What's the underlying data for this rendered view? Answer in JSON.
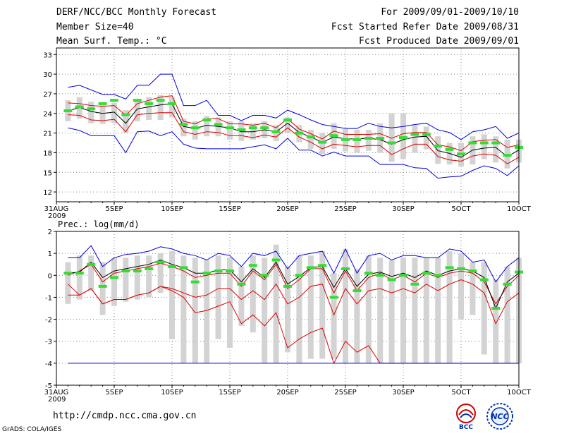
{
  "header": {
    "left": [
      "DERF/NCC/BCC Monthly Forecast",
      "Member Size=40",
      "Mean Surf. Temp.: °C"
    ],
    "right": [
      "For 2009/09/01-2009/10/10",
      "Fcst Started Refer Date 2009/08/31",
      "Fcst Produced Date 2009/09/01"
    ]
  },
  "footer": {
    "url": "http://cmdp.ncc.cma.gov.cn",
    "credit": "GrADS: COLA/IGES"
  },
  "logos": [
    {
      "name": "bcc-logo",
      "text": "BCC"
    },
    {
      "name": "ncc-logo",
      "text": "NCC"
    }
  ],
  "colors": {
    "max_min": "#0000dd",
    "spread": "#dd0000",
    "mean": "#000000",
    "median": "#33dd33",
    "box": "#d3d3d3",
    "grid": "#888888"
  },
  "chart_data": [
    {
      "type": "line",
      "title": "Mean Surf. Temp.: °C",
      "ylim": [
        10.5,
        34
      ],
      "yticks": [
        12,
        15,
        18,
        21,
        24,
        27,
        30,
        33
      ],
      "xticks": [
        {
          "day": 0,
          "label": "31AUG",
          "sub": "2009"
        },
        {
          "day": 5,
          "label": "5SEP"
        },
        {
          "day": 10,
          "label": "10SEP"
        },
        {
          "day": 15,
          "label": "15SEP"
        },
        {
          "day": 20,
          "label": "20SEP"
        },
        {
          "day": 25,
          "label": "25SEP"
        },
        {
          "day": 30,
          "label": "30SEP"
        },
        {
          "day": 35,
          "label": "5OCT"
        },
        {
          "day": 40,
          "label": "10OCT"
        }
      ],
      "x": [
        1,
        2,
        3,
        4,
        5,
        6,
        7,
        8,
        9,
        10,
        11,
        12,
        13,
        14,
        15,
        16,
        17,
        18,
        19,
        20,
        21,
        22,
        23,
        24,
        25,
        26,
        27,
        28,
        29,
        30,
        31,
        32,
        33,
        34,
        35,
        36,
        37,
        38,
        39,
        40
      ],
      "series": [
        {
          "name": "max",
          "values": [
            28,
            28.3,
            27.6,
            26.9,
            26.9,
            26.2,
            28.3,
            28.3,
            30,
            30,
            25.2,
            25.2,
            26,
            23.7,
            23.7,
            22.9,
            23.7,
            23.7,
            23.3,
            24.5,
            23.8,
            23,
            22.3,
            22,
            21.7,
            21.7,
            22.5,
            22,
            21.8,
            22,
            22.3,
            22.5,
            21.5,
            21.1,
            20,
            21.2,
            21.5,
            22,
            20.2,
            21
          ],
          "color": "#0000dd"
        },
        {
          "name": "upper",
          "values": [
            25.6,
            25.5,
            25.2,
            25.1,
            25.2,
            23.7,
            25.5,
            26,
            26.5,
            26.7,
            22.8,
            22.4,
            23.2,
            23.2,
            22.4,
            22.4,
            22.2,
            22.5,
            21.8,
            23.2,
            21.6,
            20.9,
            20.1,
            21.3,
            20.8,
            20.8,
            20.8,
            20.9,
            20.2,
            20.9,
            21.1,
            21.1,
            19.2,
            18.9,
            18.3,
            19.7,
            19.9,
            20,
            18.8,
            19.2
          ],
          "color": "#dd0000"
        },
        {
          "name": "mean",
          "values": [
            24.4,
            24.9,
            24.3,
            24,
            24.2,
            22.5,
            24.7,
            25,
            25.3,
            25.5,
            22,
            21.7,
            22.2,
            22,
            21.8,
            21.2,
            21.2,
            21.5,
            21.2,
            22.5,
            21.1,
            20.4,
            19.6,
            20.4,
            20.1,
            20.1,
            20.2,
            20,
            19.3,
            20,
            20.4,
            20.5,
            18.3,
            17.9,
            17.3,
            18.4,
            18.7,
            18.8,
            17.4,
            18.4
          ],
          "color": "#000000"
        },
        {
          "name": "lower",
          "values": [
            23.8,
            23.7,
            23,
            22.9,
            23.1,
            21.2,
            23.8,
            24,
            24.1,
            24.1,
            21.2,
            20.8,
            21.2,
            21.1,
            20.6,
            20.6,
            20.3,
            20.7,
            20.4,
            21.8,
            20.4,
            19.6,
            18.6,
            19.3,
            19.1,
            18.9,
            19.1,
            19.1,
            17.7,
            18.6,
            19.3,
            19.3,
            17.4,
            16.9,
            16.7,
            17.5,
            17.8,
            17.6,
            16.3,
            17.3
          ],
          "color": "#dd0000"
        },
        {
          "name": "min",
          "values": [
            21.8,
            21.4,
            20.6,
            20.6,
            20.6,
            18,
            21.2,
            21.3,
            20.6,
            21.2,
            19.3,
            18.7,
            18.6,
            18.6,
            18.6,
            18.6,
            18.9,
            19.2,
            18.6,
            20.2,
            18.4,
            18.4,
            17.5,
            18.1,
            17.5,
            17.5,
            17.5,
            16.2,
            16.2,
            16.2,
            15.7,
            15.6,
            14.1,
            14.3,
            14.4,
            15.3,
            16,
            15.6,
            14.5,
            16
          ],
          "color": "#0000dd"
        }
      ],
      "median": [
        24.4,
        25,
        24.7,
        25.5,
        26,
        23.8,
        26,
        25.5,
        26,
        25.5,
        22.3,
        21.8,
        23,
        22.3,
        21.8,
        21.5,
        21.8,
        21.8,
        21.2,
        23,
        21,
        20.4,
        19.6,
        20.6,
        20,
        20,
        20.2,
        20.2,
        19.5,
        20.3,
        20.8,
        20.8,
        19,
        18.5,
        17.8,
        19.5,
        19.5,
        19.5,
        17.6,
        18.8
      ],
      "box_low": [
        22.8,
        23.2,
        22.5,
        22.4,
        22.5,
        21,
        22.8,
        23,
        23,
        23.4,
        20.5,
        20,
        20.5,
        20.5,
        20,
        19.8,
        20,
        20.2,
        19.8,
        21,
        19.6,
        18.6,
        17.8,
        18.6,
        18.2,
        18,
        18.3,
        18,
        16.6,
        17,
        18,
        18.5,
        16.3,
        16.2,
        15.9,
        16.2,
        17,
        16.5,
        15.6,
        16.5
      ],
      "box_high": [
        26,
        26.5,
        25.8,
        25.5,
        25.6,
        24.5,
        26,
        26.5,
        26.8,
        26.5,
        23.2,
        22.8,
        23.6,
        23.4,
        22.8,
        22.8,
        22.5,
        22.8,
        22.2,
        23.4,
        22.2,
        21.5,
        21,
        22.5,
        21.6,
        21.5,
        21.5,
        22.5,
        24,
        24,
        22.2,
        22,
        20.5,
        19.5,
        19.5,
        20.5,
        20.8,
        20.5,
        20,
        20
      ]
    },
    {
      "type": "line",
      "title": "Prec.: log(mm/d)",
      "ylim": [
        -5,
        2
      ],
      "yticks": [
        -5,
        -4,
        -3,
        -2,
        -1,
        0,
        1,
        2
      ],
      "xticks": [
        {
          "day": 0,
          "label": "31AUG",
          "sub": "2009"
        },
        {
          "day": 5,
          "label": "5SEP"
        },
        {
          "day": 10,
          "label": "10SEP"
        },
        {
          "day": 15,
          "label": "15SEP"
        },
        {
          "day": 20,
          "label": "20SEP"
        },
        {
          "day": 25,
          "label": "25SEP"
        },
        {
          "day": 30,
          "label": "30SEP"
        },
        {
          "day": 35,
          "label": "5OCT"
        },
        {
          "day": 40,
          "label": "10OCT"
        }
      ],
      "x": [
        1,
        2,
        3,
        4,
        5,
        6,
        7,
        8,
        9,
        10,
        11,
        12,
        13,
        14,
        15,
        16,
        17,
        18,
        19,
        20,
        21,
        22,
        23,
        24,
        25,
        26,
        27,
        28,
        29,
        30,
        31,
        32,
        33,
        34,
        35,
        36,
        37,
        38,
        39,
        40
      ],
      "series": [
        {
          "name": "max",
          "values": [
            0.8,
            0.8,
            1.35,
            0.4,
            0.8,
            0.95,
            1,
            1.1,
            1.3,
            1.2,
            1,
            0.9,
            0.7,
            1,
            0.9,
            0.4,
            1,
            0.9,
            1.1,
            0.3,
            0.9,
            1,
            1.1,
            0.1,
            1.2,
            0.1,
            0.9,
            1,
            0.7,
            0.9,
            0.9,
            0.8,
            0.8,
            1.2,
            1.1,
            0.6,
            0.7,
            -0.3,
            0.4,
            0.8
          ],
          "color": "#0000dd"
        },
        {
          "name": "upper",
          "values": [
            0,
            0.2,
            0.5,
            -0.3,
            0.1,
            0.2,
            0.3,
            0.4,
            0.55,
            0.4,
            0.2,
            -0.1,
            0,
            0.1,
            0.1,
            -0.5,
            0.2,
            -0.2,
            0.5,
            -0.6,
            -0.2,
            0.3,
            0.3,
            -0.8,
            0.2,
            -0.7,
            -0.1,
            0.1,
            -0.2,
            0,
            -0.3,
            0.1,
            -0.1,
            0.1,
            0.2,
            0.1,
            -0.3,
            -1.3,
            -0.5,
            0
          ],
          "color": "#dd0000"
        },
        {
          "name": "mean",
          "values": [
            0.1,
            0.15,
            0.6,
            -0.1,
            0.2,
            0.3,
            0.4,
            0.5,
            0.7,
            0.5,
            0.35,
            0.1,
            0.1,
            0.25,
            0.25,
            -0.3,
            0.3,
            -0.1,
            0.6,
            -0.4,
            -0.05,
            0.35,
            0.4,
            -0.55,
            0.3,
            -0.5,
            0.05,
            0.15,
            -0.05,
            0.1,
            -0.1,
            0.2,
            0,
            0.2,
            0.3,
            0.2,
            -0.1,
            -1.5,
            -0.3,
            0.1
          ],
          "color": "#000000"
        },
        {
          "name": "lower",
          "values": [
            -0.4,
            -0.9,
            -0.6,
            -1.3,
            -1.1,
            -1.1,
            -0.9,
            -0.8,
            -0.5,
            -0.7,
            -1,
            -1.7,
            -1.6,
            -1.4,
            -1.2,
            -2.2,
            -1.8,
            -2.3,
            -1.7,
            -3.3,
            -2.9,
            -2.6,
            -2.4,
            -4,
            -3,
            -3.5,
            -3.2,
            -4,
            -4,
            -4,
            -4,
            -4,
            -4,
            -4,
            -4,
            -4,
            -4,
            -4,
            -4,
            -4
          ],
          "color": "#dd0000"
        },
        {
          "name": "lower2",
          "values": [
            -0.9,
            -0.9,
            -0.6,
            -1.3,
            -1.1,
            -1.1,
            -0.9,
            -0.8,
            -0.5,
            -0.6,
            -0.8,
            -1,
            -0.9,
            -0.6,
            -0.6,
            -1.1,
            -0.7,
            -1.1,
            -0.4,
            -1.3,
            -1,
            -0.5,
            -0.4,
            -1.8,
            -0.6,
            -1.3,
            -0.7,
            -0.6,
            -0.8,
            -0.6,
            -0.8,
            -0.4,
            -0.7,
            -0.4,
            -0.2,
            -0.4,
            -0.8,
            -2.2,
            -1.2,
            -0.8
          ],
          "color": "#dd0000"
        },
        {
          "name": "min",
          "values": [
            -4,
            -4,
            -4,
            -4,
            -4,
            -4,
            -4,
            -4,
            -4,
            -4,
            -4,
            -4,
            -4,
            -4,
            -4,
            -4,
            -4,
            -4,
            -4,
            -4,
            -4,
            -4,
            -4,
            -4,
            -4,
            -4,
            -4,
            -4,
            -4,
            -4,
            -4,
            -4,
            -4,
            -4,
            -4,
            -4,
            -4,
            -4,
            -4,
            -4
          ],
          "color": "#0000dd"
        }
      ],
      "median": [
        0.1,
        0.1,
        0.5,
        -0.5,
        -0.1,
        0.2,
        0.2,
        0.3,
        0.6,
        0.4,
        0.35,
        -0.3,
        0.1,
        0.2,
        0.2,
        -0.4,
        0.45,
        0,
        0.7,
        -0.5,
        0,
        0.35,
        0.45,
        -1,
        0.3,
        -0.7,
        0.1,
        0,
        -0.2,
        0,
        -0.4,
        0.1,
        0,
        0.35,
        0.3,
        0.2,
        -0.2,
        -1.5,
        -0.4,
        0.15
      ],
      "box_low": [
        -1.3,
        -1.1,
        -0.7,
        -1.8,
        -1.4,
        -1.2,
        -1.1,
        -1,
        -0.8,
        -2.9,
        -4,
        -4,
        -4,
        -2.9,
        -3.3,
        -2.3,
        -2.6,
        -4,
        -4,
        -3.5,
        -4,
        -3.8,
        -3.8,
        -3.8,
        -4,
        -4,
        -4,
        -4,
        -4,
        -4,
        -4,
        -4,
        -4,
        -4,
        -2,
        -1.8,
        -3.6,
        -4,
        -4,
        -4
      ],
      "box_high": [
        0.6,
        0.9,
        0.9,
        0.6,
        0.8,
        0.8,
        0.9,
        0.9,
        1,
        1.1,
        0.9,
        0.8,
        0.7,
        0.9,
        0.8,
        0.4,
        0.9,
        0.8,
        1.4,
        0.4,
        0.9,
        0.9,
        1.1,
        0.1,
        1.2,
        0.3,
        0.9,
        0.8,
        0.7,
        0.8,
        0.8,
        0.8,
        0.8,
        1.1,
        1,
        0.6,
        0.6,
        -0.2,
        0.4,
        0.8
      ]
    }
  ]
}
